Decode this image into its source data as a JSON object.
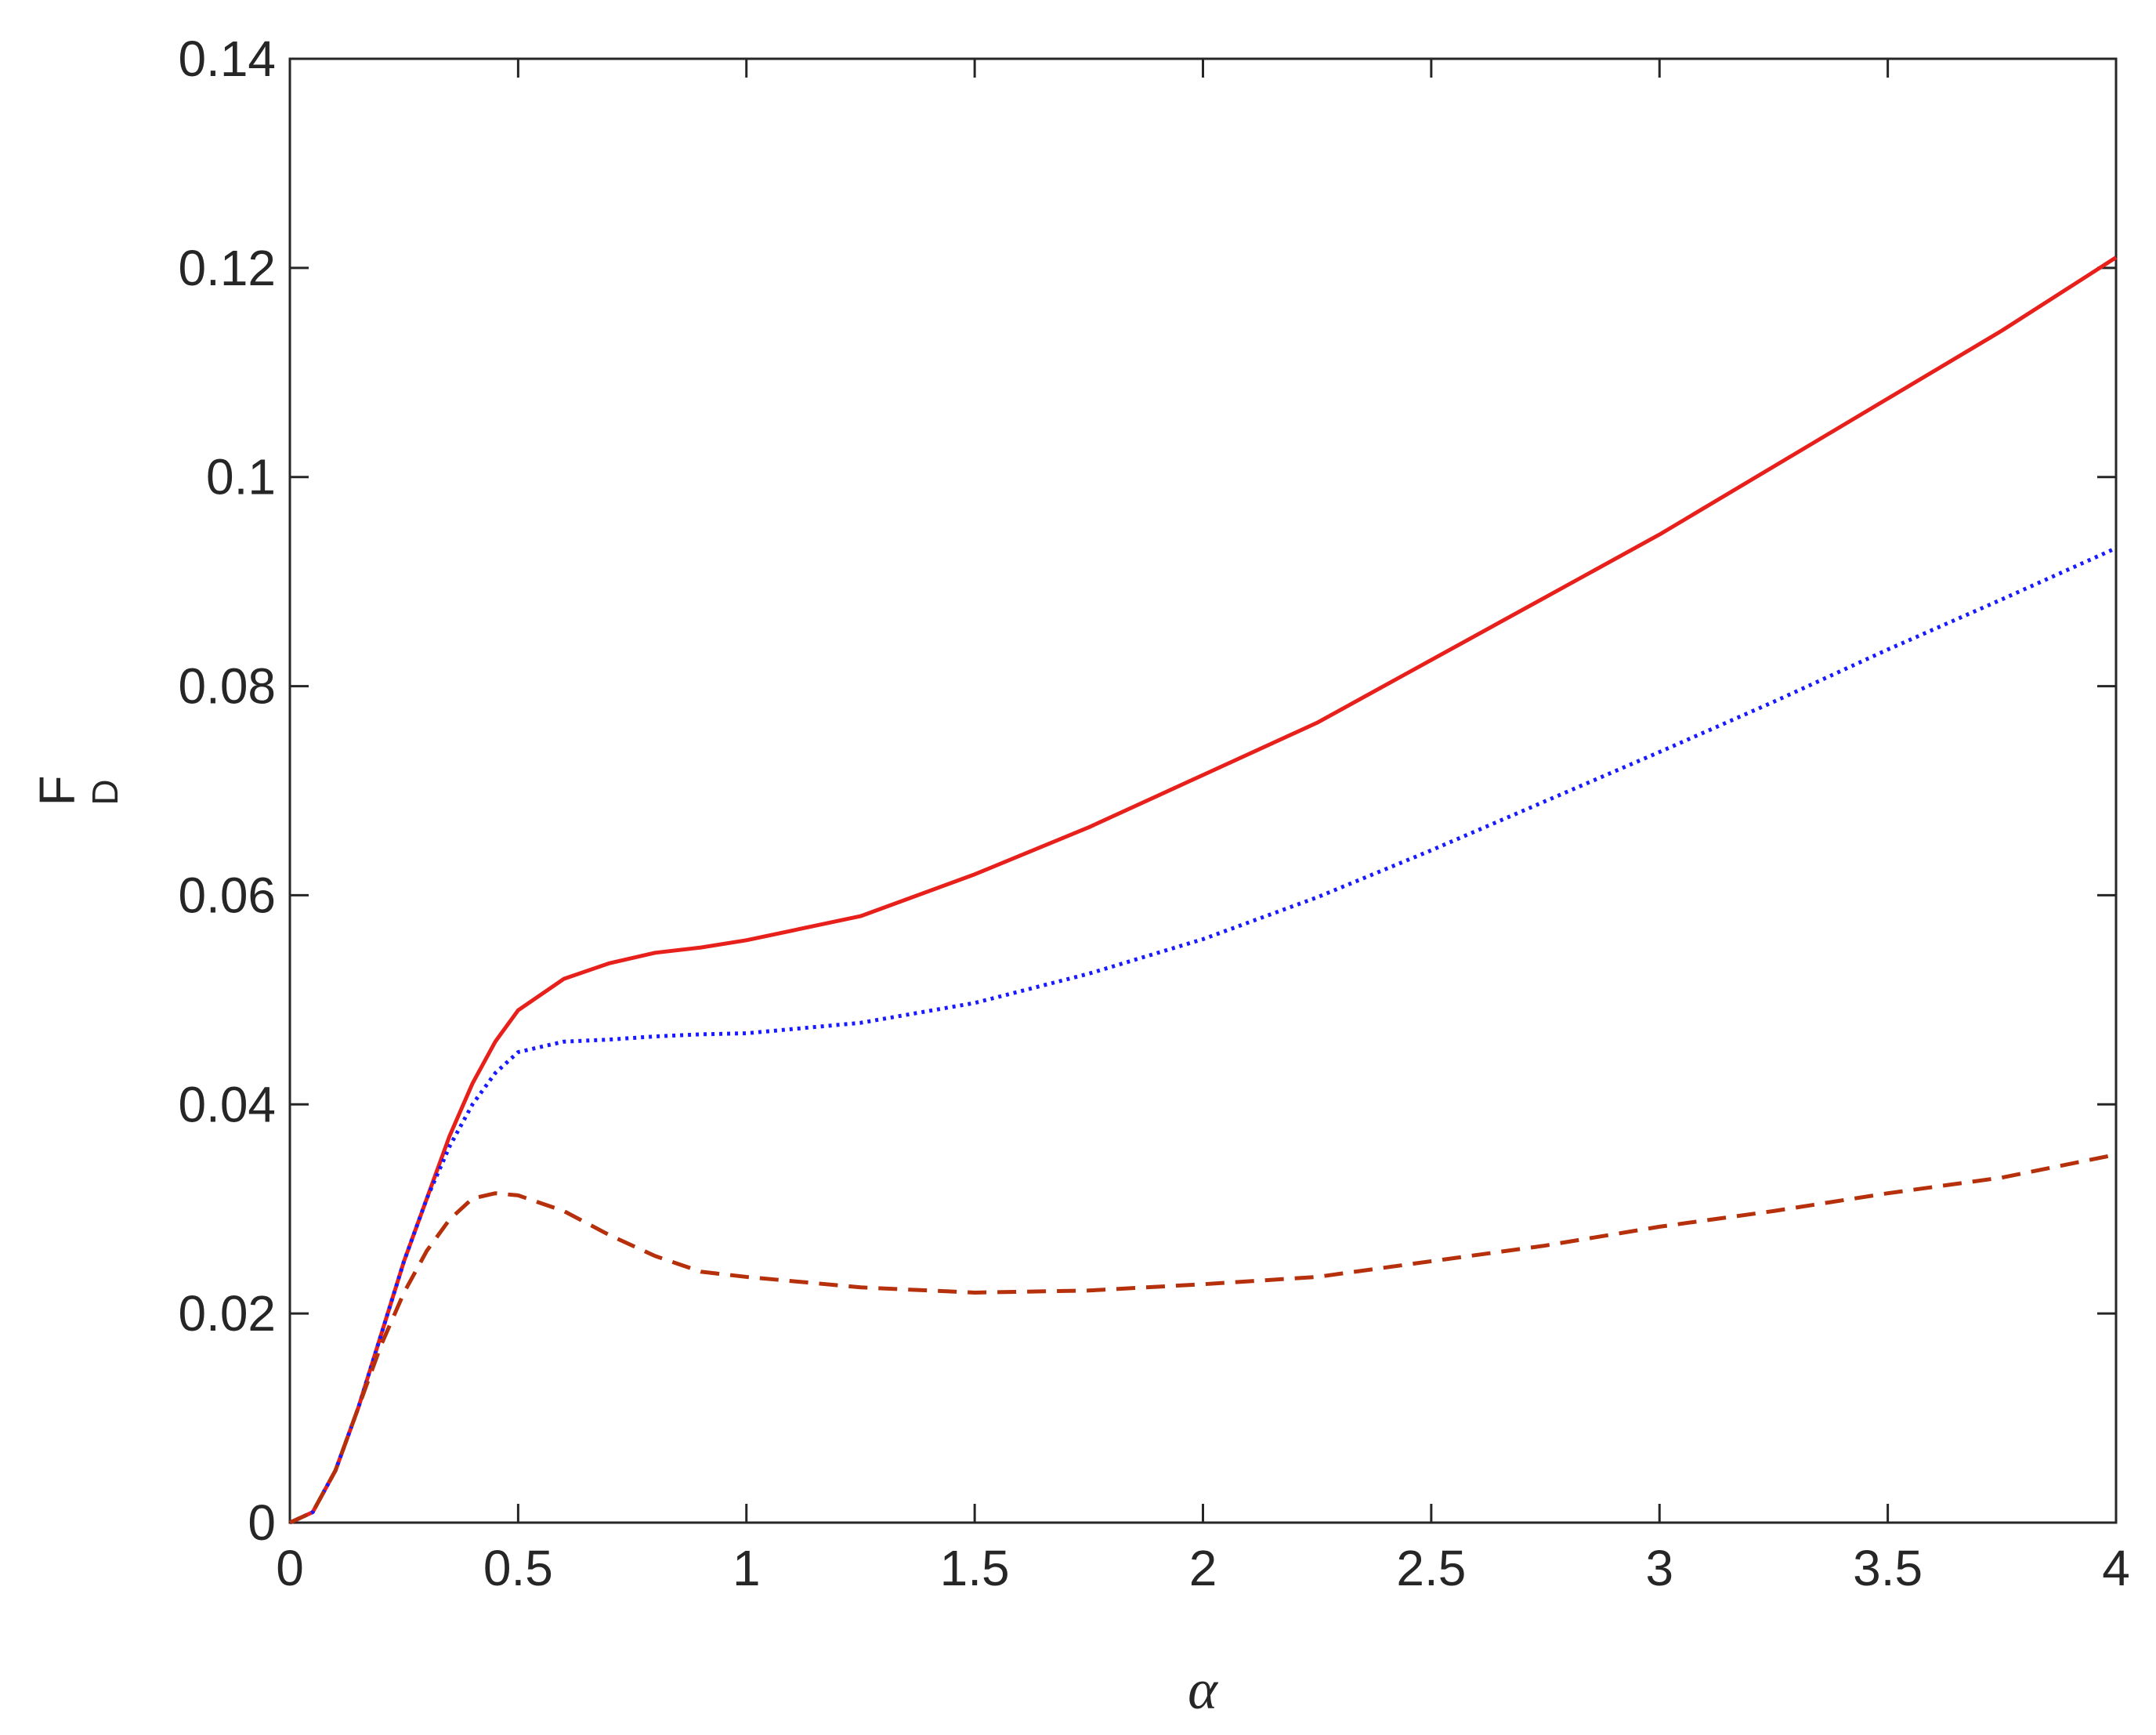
{
  "chart_data": {
    "type": "line",
    "xlabel": "α",
    "ylabel": {
      "text": "F",
      "subscript": "D"
    },
    "x": [
      0,
      0.05,
      0.1,
      0.15,
      0.2,
      0.25,
      0.3,
      0.35,
      0.4,
      0.45,
      0.5,
      0.6,
      0.7,
      0.8,
      0.9,
      1,
      1.25,
      1.5,
      1.75,
      2,
      2.25,
      2.5,
      2.75,
      3,
      3.25,
      3.5,
      3.75,
      4
    ],
    "series": [
      {
        "color": "#e8201c",
        "style": "solid",
        "values": [
          0,
          0.001,
          0.005,
          0.011,
          0.018,
          0.025,
          0.031,
          0.037,
          0.042,
          0.046,
          0.049,
          0.052,
          0.0535,
          0.0545,
          0.055,
          0.0557,
          0.058,
          0.062,
          0.0665,
          0.0715,
          0.0765,
          0.0825,
          0.0885,
          0.0945,
          0.101,
          0.1075,
          0.114,
          0.121
        ]
      },
      {
        "color": "#1a1aff",
        "style": "dotted",
        "values": [
          0,
          0.001,
          0.005,
          0.011,
          0.018,
          0.025,
          0.031,
          0.036,
          0.04,
          0.043,
          0.045,
          0.046,
          0.0462,
          0.0465,
          0.0467,
          0.0468,
          0.0478,
          0.0497,
          0.0525,
          0.0558,
          0.0598,
          0.0643,
          0.069,
          0.0737,
          0.0785,
          0.0835,
          0.0883,
          0.0932
        ]
      },
      {
        "color": "#b5300b",
        "style": "dashed",
        "values": [
          0,
          0.001,
          0.005,
          0.011,
          0.017,
          0.022,
          0.026,
          0.029,
          0.031,
          0.0315,
          0.0313,
          0.0298,
          0.0275,
          0.0255,
          0.024,
          0.0235,
          0.0225,
          0.022,
          0.0222,
          0.0228,
          0.0235,
          0.025,
          0.0265,
          0.0283,
          0.0298,
          0.0315,
          0.033,
          0.0352
        ]
      }
    ],
    "xlim": [
      0,
      4
    ],
    "xticks": [
      0,
      0.5,
      1,
      1.5,
      2,
      2.5,
      3,
      3.5,
      4
    ],
    "ylim": [
      0,
      0.14
    ],
    "yticks": [
      0,
      0.02,
      0.04,
      0.06,
      0.08,
      0.1,
      0.12,
      0.14
    ],
    "grid": false
  }
}
